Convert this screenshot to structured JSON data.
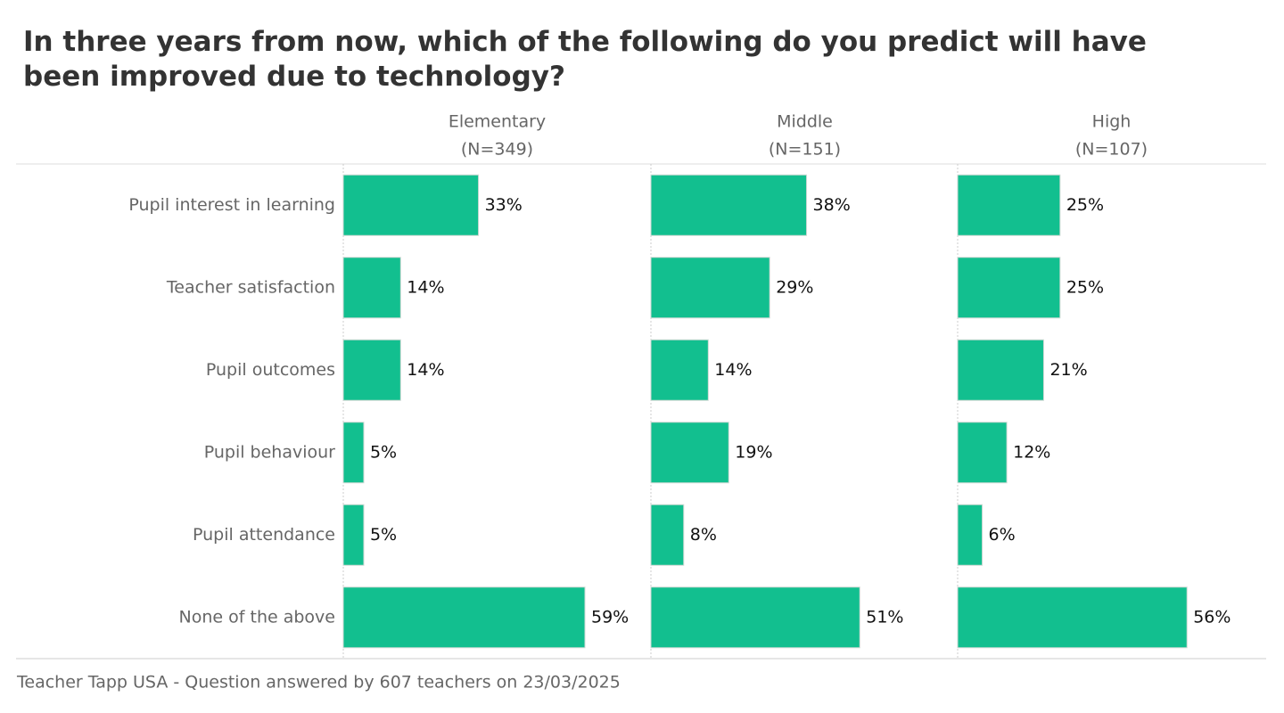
{
  "chart_data": {
    "type": "bar",
    "title": "In three years from now, which of the following do you predict will have been improved due to technology?",
    "categories": [
      "Pupil interest in learning",
      "Teacher satisfaction",
      "Pupil outcomes",
      "Pupil behaviour",
      "Pupil attendance",
      "None of the above"
    ],
    "series": [
      {
        "name": "Elementary",
        "subtitle": "(N=349)",
        "color": "#12bf8f",
        "values": [
          33,
          14,
          14,
          5,
          5,
          59
        ],
        "value_labels": [
          "33%",
          "14%",
          "14%",
          "5%",
          "5%",
          "59%"
        ]
      },
      {
        "name": "Middle",
        "subtitle": "(N=151)",
        "color": "#12bf8f",
        "values": [
          38,
          29,
          14,
          19,
          8,
          51
        ],
        "value_labels": [
          "38%",
          "29%",
          "14%",
          "19%",
          "8%",
          "51%"
        ]
      },
      {
        "name": "High",
        "subtitle": "(N=107)",
        "color": "#12bf8f",
        "values": [
          25,
          25,
          21,
          12,
          6,
          56
        ],
        "value_labels": [
          "25%",
          "25%",
          "21%",
          "12%",
          "6%",
          "56%"
        ]
      }
    ],
    "source": "Teacher Tapp USA - Question answered by 607 teachers on 23/03/2025"
  }
}
